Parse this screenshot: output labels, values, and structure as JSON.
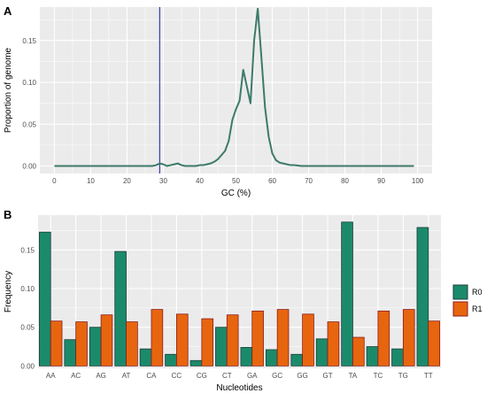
{
  "chart_data": [
    {
      "panel_label": "A",
      "type": "line",
      "xlabel": "GC (%)",
      "ylabel": "Proportion of genome",
      "xlim": [
        -4,
        104
      ],
      "ylim": [
        -0.009,
        0.19
      ],
      "x_ticks": [
        0,
        10,
        20,
        30,
        40,
        50,
        60,
        70,
        80,
        90,
        100
      ],
      "y_ticks": [
        0.0,
        0.05,
        0.1,
        0.15
      ],
      "y_tick_labels": [
        "0.00",
        "0.05",
        "0.10",
        "0.15"
      ],
      "grid": true,
      "vline": {
        "x": 29,
        "color": "#2b2f9e"
      },
      "series": [
        {
          "color": "#3d7a6a",
          "x": [
            0,
            2,
            4,
            6,
            8,
            10,
            12,
            14,
            16,
            18,
            20,
            22,
            24,
            26,
            27,
            28,
            29,
            30,
            31,
            32,
            33,
            34,
            35,
            36,
            37,
            38,
            39,
            40,
            41,
            42,
            43,
            44,
            45,
            46,
            47,
            48,
            49,
            50,
            51,
            52,
            53,
            54,
            55,
            56,
            57,
            58,
            59,
            60,
            61,
            62,
            63,
            64,
            65,
            66,
            68,
            70,
            75,
            80,
            85,
            90,
            95,
            99
          ],
          "y": [
            0.0,
            0.0,
            0.0,
            0.0,
            0.0,
            0.0,
            0.0,
            0.0,
            0.0,
            0.0,
            0.0,
            0.0,
            0.0,
            0.0,
            0.0,
            0.001,
            0.003,
            0.002,
            0.0,
            0.001,
            0.002,
            0.003,
            0.001,
            0.0,
            0.0,
            0.0,
            0.0,
            0.001,
            0.001,
            0.002,
            0.003,
            0.005,
            0.008,
            0.013,
            0.018,
            0.03,
            0.055,
            0.068,
            0.078,
            0.115,
            0.095,
            0.075,
            0.15,
            0.188,
            0.13,
            0.07,
            0.035,
            0.015,
            0.007,
            0.004,
            0.003,
            0.002,
            0.001,
            0.001,
            0.0,
            0.0,
            0.0,
            0.0,
            0.0,
            0.0,
            0.0,
            0.0
          ]
        }
      ]
    },
    {
      "panel_label": "B",
      "type": "bar",
      "xlabel": "Nucleotides",
      "ylabel": "Frequency",
      "ylim": [
        -0.003,
        0.195
      ],
      "y_ticks": [
        0.0,
        0.05,
        0.1,
        0.15
      ],
      "y_tick_labels": [
        "0.00",
        "0.05",
        "0.10",
        "0.15"
      ],
      "grid": true,
      "legend_position": "right",
      "categories": [
        "AA",
        "AC",
        "AG",
        "AT",
        "CA",
        "CC",
        "CG",
        "CT",
        "GA",
        "GC",
        "GG",
        "GT",
        "TA",
        "TC",
        "TG",
        "TT"
      ],
      "series": [
        {
          "name": "R0",
          "color": "#1b8a6b",
          "values": [
            0.173,
            0.034,
            0.05,
            0.148,
            0.022,
            0.015,
            0.007,
            0.05,
            0.024,
            0.021,
            0.015,
            0.035,
            0.186,
            0.025,
            0.022,
            0.179
          ]
        },
        {
          "name": "R1",
          "color": "#e8650f",
          "values": [
            0.058,
            0.057,
            0.066,
            0.057,
            0.073,
            0.067,
            0.061,
            0.066,
            0.071,
            0.073,
            0.067,
            0.057,
            0.037,
            0.071,
            0.073,
            0.058
          ]
        }
      ]
    }
  ]
}
